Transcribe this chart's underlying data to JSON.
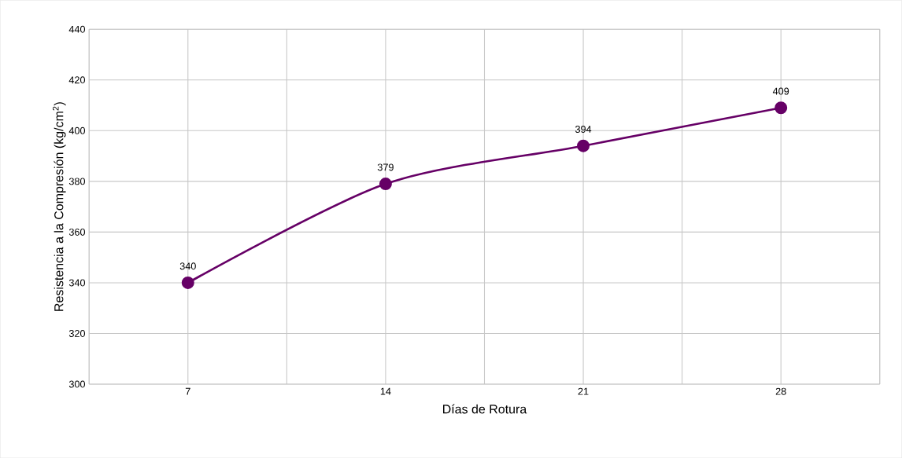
{
  "chart_data": {
    "type": "line",
    "xlabel": "Días de Rotura",
    "ylabel": "Resistencia a la Compresión (kg/cm$^{2}$)",
    "categories": [
      "7",
      "14",
      "21",
      "28"
    ],
    "series": [
      {
        "color": "#660066",
        "values": [
          340,
          379,
          394,
          409
        ]
      }
    ],
    "ylim": [
      300,
      440
    ],
    "yticks": [
      300,
      320,
      340,
      360,
      380,
      400,
      420,
      440
    ],
    "grid": true,
    "marker": "circle",
    "line_style": "solid",
    "data_labels": true
  }
}
